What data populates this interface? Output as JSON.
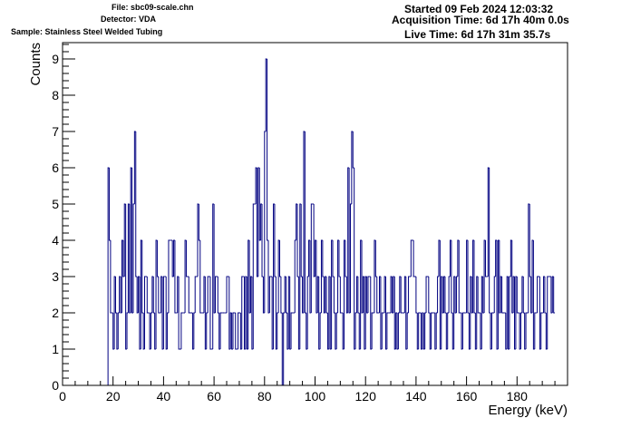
{
  "header": {
    "file": "File: sbc09-scale.chn",
    "detector": "Detector: VDA",
    "sample": "Sample: Stainless Steel Welded Tubing",
    "started": "Started 09 Feb 2024 12:03:32",
    "acquisition": "Acquisition Time: 6d 17h 40m 0.0s",
    "live": "Live Time: 6d 17h 31m 35.7s"
  },
  "colors": {
    "histogram": "#000080",
    "axis": "#000000",
    "background": "#ffffff"
  },
  "chart_data": {
    "type": "bar",
    "style": "histogram-step",
    "title": "",
    "xlabel": "Energy (keV)",
    "ylabel": "Counts",
    "xlim": [
      0,
      200
    ],
    "ylim": [
      0,
      9.45
    ],
    "x_ticks": [
      0,
      20,
      40,
      60,
      80,
      100,
      120,
      140,
      160,
      180
    ],
    "y_ticks": [
      0,
      1,
      2,
      3,
      4,
      5,
      6,
      7,
      8,
      9
    ],
    "grid": false,
    "legend": "none",
    "bin_width_keV": 0.5,
    "bins_start_keV": 0,
    "values": [
      0,
      0,
      0,
      0,
      0,
      0,
      0,
      0,
      0,
      0,
      0,
      0,
      0,
      0,
      0,
      0,
      0,
      0,
      0,
      0,
      0,
      0,
      0,
      0,
      0,
      0,
      0,
      0,
      0,
      0,
      0,
      0,
      0,
      0,
      0,
      0,
      6,
      4,
      2,
      2,
      1,
      3,
      2,
      1,
      2,
      3,
      2,
      4,
      3,
      5,
      1,
      2,
      5,
      2,
      6,
      2,
      5,
      7,
      3,
      2,
      3,
      1,
      4,
      2,
      1,
      3,
      3,
      2,
      2,
      1,
      2,
      3,
      2,
      1,
      4,
      3,
      2,
      2,
      3,
      1,
      3,
      3,
      1,
      2,
      4,
      4,
      4,
      3,
      4,
      2,
      2,
      3,
      1,
      1,
      2,
      2,
      2,
      4,
      3,
      3,
      2,
      2,
      2,
      1,
      2,
      3,
      3,
      5,
      4,
      2,
      2,
      2,
      3,
      1,
      2,
      3,
      3,
      1,
      1,
      5,
      2,
      3,
      3,
      2,
      1,
      2,
      2,
      2,
      2,
      2,
      3,
      3,
      1,
      2,
      1,
      2,
      2,
      1,
      1,
      2,
      2,
      1,
      3,
      3,
      1,
      3,
      1,
      4,
      2,
      3,
      1,
      5,
      5,
      6,
      3,
      6,
      4,
      5,
      3,
      2,
      7,
      9,
      4,
      2,
      3,
      3,
      1,
      5,
      3,
      1,
      2,
      4,
      3,
      2,
      0,
      2,
      3,
      2,
      1,
      3,
      1,
      2,
      2,
      2,
      4,
      5,
      3,
      1,
      5,
      3,
      2,
      7,
      2,
      1,
      3,
      4,
      2,
      5,
      5,
      3,
      4,
      2,
      3,
      1,
      2,
      4,
      3,
      2,
      3,
      2,
      1,
      3,
      1,
      4,
      3,
      2,
      1,
      2,
      4,
      3,
      2,
      2,
      1,
      4,
      3,
      2,
      6,
      2,
      5,
      7,
      6,
      1,
      2,
      3,
      2,
      1,
      4,
      2,
      3,
      1,
      3,
      2,
      3,
      3,
      1,
      2,
      2,
      4,
      3,
      2,
      2,
      3,
      1,
      2,
      2,
      3,
      1,
      2,
      2,
      2,
      3,
      2,
      3,
      1,
      2,
      1,
      2,
      3,
      2,
      2,
      2,
      3,
      1,
      2,
      3,
      3,
      4,
      4,
      3,
      3,
      2,
      1,
      2,
      2,
      1,
      2,
      1,
      2,
      3,
      3,
      2,
      1,
      2,
      2,
      2,
      1,
      2,
      3,
      4,
      1,
      3,
      2,
      3,
      2,
      1,
      2,
      3,
      4,
      2,
      1,
      3,
      2,
      3,
      4,
      2,
      2,
      1,
      2,
      2,
      2,
      4,
      2,
      1,
      3,
      2,
      4,
      2,
      1,
      3,
      2,
      2,
      1,
      3,
      2,
      4,
      3,
      3,
      6,
      2,
      1,
      2,
      2,
      3,
      4,
      1,
      4,
      2,
      3,
      2,
      2,
      2,
      1,
      3,
      1,
      3,
      4,
      2,
      3,
      1,
      3,
      2,
      2,
      1,
      2,
      3,
      2,
      1,
      2,
      2,
      5,
      3,
      2,
      4,
      1,
      2,
      2,
      3,
      3,
      1,
      2,
      2,
      3,
      2,
      1,
      3,
      3,
      3,
      2,
      3,
      2
    ]
  }
}
